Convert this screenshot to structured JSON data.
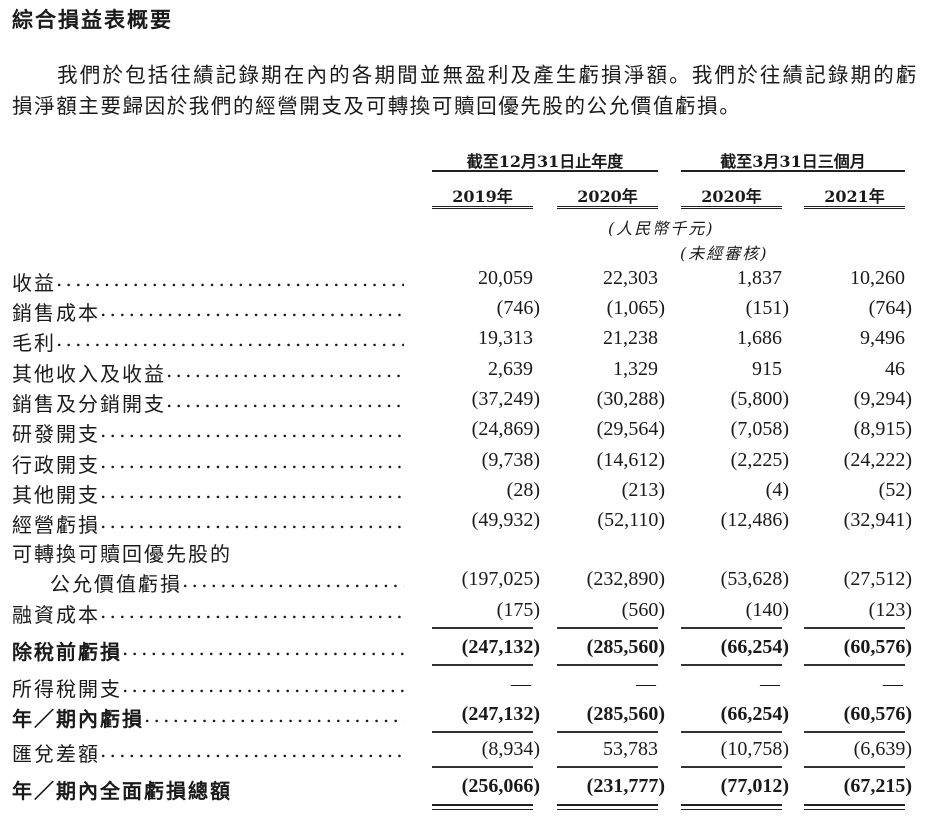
{
  "title": "綜合損益表概要",
  "paragraph": "我們於包括往績記錄期在內的各期間並無盈利及產生虧損淨額。我們於往績記錄期的虧損淨額主要歸因於我們的經營開支及可轉換可贖回優先股的公允價值虧損。",
  "table": {
    "groups": [
      "截至12月31日止年度",
      "截至3月31日三個月"
    ],
    "years": [
      "2019年",
      "2020年",
      "2020年",
      "2021年"
    ],
    "unit": "(人民幣千元)",
    "unaudited": "(未經審核)",
    "rows": [
      {
        "label": "收益",
        "values": [
          "20,059",
          "22,303",
          "1,837",
          "10,260"
        ]
      },
      {
        "label": "銷售成本",
        "values": [
          "(746)",
          "(1,065)",
          "(151)",
          "(764)"
        ]
      },
      {
        "label": "毛利",
        "values": [
          "19,313",
          "21,238",
          "1,686",
          "9,496"
        ]
      },
      {
        "label": "其他收入及收益",
        "values": [
          "2,639",
          "1,329",
          "915",
          "46"
        ]
      },
      {
        "label": "銷售及分銷開支",
        "values": [
          "(37,249)",
          "(30,288)",
          "(5,800)",
          "(9,294)"
        ]
      },
      {
        "label": "研發開支",
        "values": [
          "(24,869)",
          "(29,564)",
          "(7,058)",
          "(8,915)"
        ]
      },
      {
        "label": "行政開支",
        "values": [
          "(9,738)",
          "(14,612)",
          "(2,225)",
          "(24,222)"
        ]
      },
      {
        "label": "其他開支",
        "values": [
          "(28)",
          "(213)",
          "(4)",
          "(52)"
        ]
      },
      {
        "label": "經營虧損",
        "values": [
          "(49,932)",
          "(52,110)",
          "(12,486)",
          "(32,941)"
        ]
      },
      {
        "label": "可轉換可贖回優先股的",
        "values": []
      },
      {
        "label": "公允價值虧損",
        "indent": true,
        "values": [
          "(197,025)",
          "(232,890)",
          "(53,628)",
          "(27,512)"
        ]
      },
      {
        "label": "融資成本",
        "values": [
          "(175)",
          "(560)",
          "(140)",
          "(123)"
        ],
        "underline": true
      },
      {
        "label": "除稅前虧損",
        "bold": true,
        "values": [
          "(247,132)",
          "(285,560)",
          "(66,254)",
          "(60,576)"
        ],
        "underline": true
      },
      {
        "label": "所得稅開支",
        "values": [
          "—",
          "—",
          "—",
          "—"
        ]
      },
      {
        "label": "年／期內虧損",
        "bold": true,
        "values": [
          "(247,132)",
          "(285,560)",
          "(66,254)",
          "(60,576)"
        ],
        "underline": true
      },
      {
        "label": "匯兌差額",
        "values": [
          "(8,934)",
          "53,783",
          "(10,758)",
          "(6,639)"
        ],
        "underline": true
      },
      {
        "label": "年／期內全面虧損總額",
        "bold": true,
        "nodots": true,
        "values": [
          "(256,066)",
          "(231,777)",
          "(77,012)",
          "(67,215)"
        ],
        "double": true
      }
    ]
  }
}
